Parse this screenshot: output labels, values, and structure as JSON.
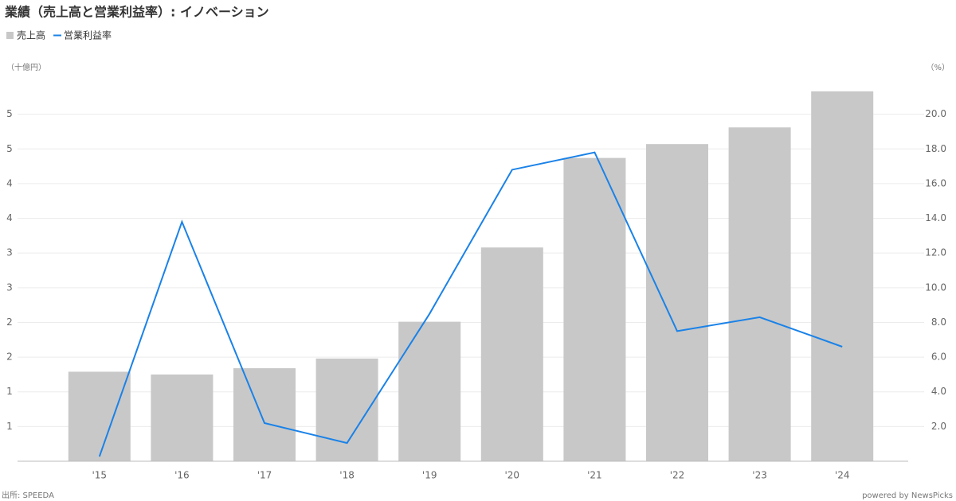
{
  "chart_data": {
    "type": "bar-line",
    "title": "業績（売上高と営業利益率）: イノベーション",
    "y_unit": "（十億円）",
    "y2_unit": "（%）",
    "source": "出所: SPEEDA",
    "credit": "powered by NewsPicks",
    "categories": [
      "'15",
      "'16",
      "'17",
      "'18",
      "'19",
      "'20",
      "'21",
      "'22",
      "'23",
      "'24"
    ],
    "series": [
      {
        "name": "売上高",
        "type": "bar",
        "color": "#c8c8c8",
        "values": [
          1.29,
          1.25,
          1.34,
          1.48,
          2.01,
          3.08,
          4.37,
          4.57,
          4.81,
          5.33
        ]
      },
      {
        "name": "営業利益率",
        "type": "line",
        "axis": "y2",
        "color": "#1a82e8",
        "values": [
          0.27,
          13.8,
          2.2,
          1.05,
          8.5,
          16.8,
          17.8,
          7.5,
          8.3,
          6.6
        ]
      }
    ],
    "ylim": [
      0,
      5.5
    ],
    "yticks": [
      {
        "value": 0.5,
        "label": "1"
      },
      {
        "value": 1.0,
        "label": "1"
      },
      {
        "value": 1.5,
        "label": "2"
      },
      {
        "value": 2.0,
        "label": "2"
      },
      {
        "value": 2.5,
        "label": "3"
      },
      {
        "value": 3.0,
        "label": "3"
      },
      {
        "value": 3.5,
        "label": "4"
      },
      {
        "value": 4.0,
        "label": "4"
      },
      {
        "value": 4.5,
        "label": "5"
      },
      {
        "value": 5.0,
        "label": "5"
      }
    ],
    "y2lim": [
      0,
      22
    ],
    "y2ticks": [
      {
        "value": 2,
        "label": "2.0"
      },
      {
        "value": 4,
        "label": "4.0"
      },
      {
        "value": 6,
        "label": "6.0"
      },
      {
        "value": 8,
        "label": "8.0"
      },
      {
        "value": 10,
        "label": "10.0"
      },
      {
        "value": 12,
        "label": "12.0"
      },
      {
        "value": 14,
        "label": "14.0"
      },
      {
        "value": 16,
        "label": "16.0"
      },
      {
        "value": 18,
        "label": "18.0"
      },
      {
        "value": 20,
        "label": "20.0"
      }
    ],
    "grid": true,
    "legend": "top-left"
  }
}
